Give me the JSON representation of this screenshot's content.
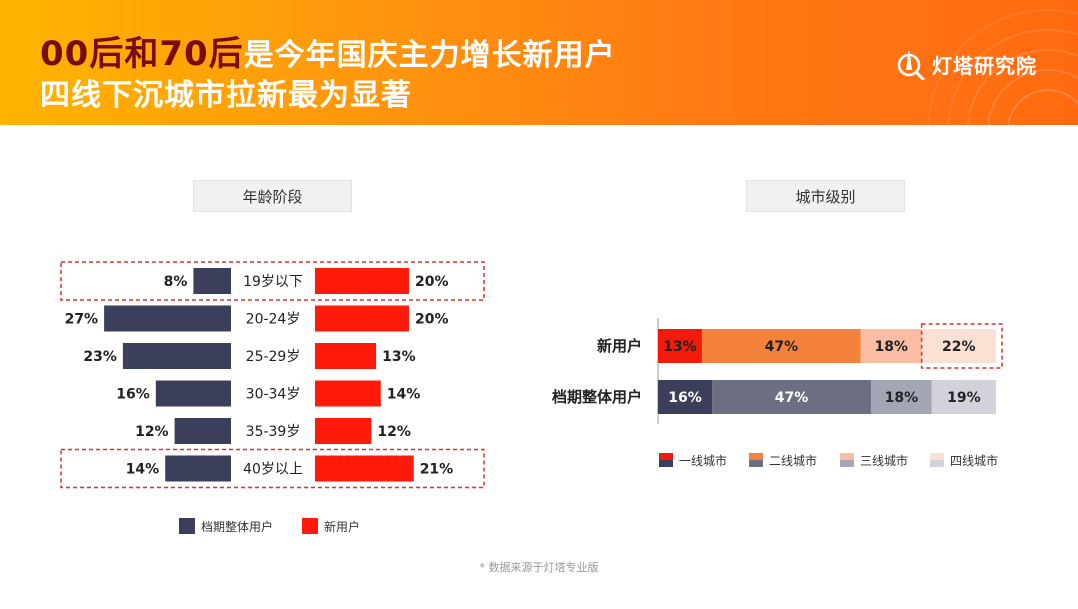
{
  "header": {
    "title_line1_highlight": "00后和70后",
    "title_line1_rest": "是今年国庆主力增长新用户",
    "title_line2": "四线下沉城市拉新最为显著",
    "brand_name": "灯塔研究院",
    "brand_icon": "lighthouse-magnifier-icon"
  },
  "colors": {
    "overall": "#3c3f5c",
    "new": "#ff1a0a",
    "tier1_new": "#f21a0a",
    "tier2_new": "#f5823c",
    "tier3_new": "#fbbca4",
    "tier4_new": "#fde0d4",
    "tier1_overall": "#3c3f5c",
    "tier2_overall": "#6c6e82",
    "tier3_overall": "#a4a6b4",
    "tier4_overall": "#d2d3da",
    "highlight_border": "#d9302a"
  },
  "chart_data": [
    {
      "type": "bar",
      "subtype": "diverging-horizontal",
      "title": "年龄阶段",
      "categories": [
        "19岁以下",
        "20-24岁",
        "25-29岁",
        "30-34岁",
        "35-39岁",
        "40岁以上"
      ],
      "series": [
        {
          "name": "档期整体用户",
          "values": [
            8,
            27,
            23,
            16,
            12,
            14
          ]
        },
        {
          "name": "新用户",
          "values": [
            20,
            20,
            13,
            14,
            12,
            21
          ]
        }
      ],
      "value_labels_overall": [
        "8%",
        "27%",
        "23%",
        "16%",
        "12%",
        "14%"
      ],
      "value_labels_new": [
        "20%",
        "20%",
        "13%",
        "14%",
        "12%",
        "21%"
      ],
      "highlighted_categories": [
        "19岁以下",
        "40岁以上"
      ],
      "legend": [
        "档期整体用户",
        "新用户"
      ],
      "legend_position": "bottom"
    },
    {
      "type": "bar",
      "subtype": "stacked-100-horizontal",
      "title": "城市级别",
      "categories": [
        "新用户",
        "档期整体用户"
      ],
      "series": [
        {
          "name": "一线城市",
          "values": [
            13,
            16
          ]
        },
        {
          "name": "二线城市",
          "values": [
            47,
            47
          ]
        },
        {
          "name": "三线城市",
          "values": [
            18,
            18
          ]
        },
        {
          "name": "四线城市",
          "values": [
            22,
            19
          ]
        }
      ],
      "value_labels": [
        [
          "13%",
          "47%",
          "18%",
          "22%"
        ],
        [
          "16%",
          "47%",
          "18%",
          "19%"
        ]
      ],
      "highlighted_segment": {
        "category": "新用户",
        "series": "四线城市"
      },
      "legend": [
        "一线城市",
        "二线城市",
        "三线城市",
        "四线城市"
      ],
      "legend_position": "bottom"
    }
  ],
  "footnote": "* 数据来源于灯塔专业版"
}
